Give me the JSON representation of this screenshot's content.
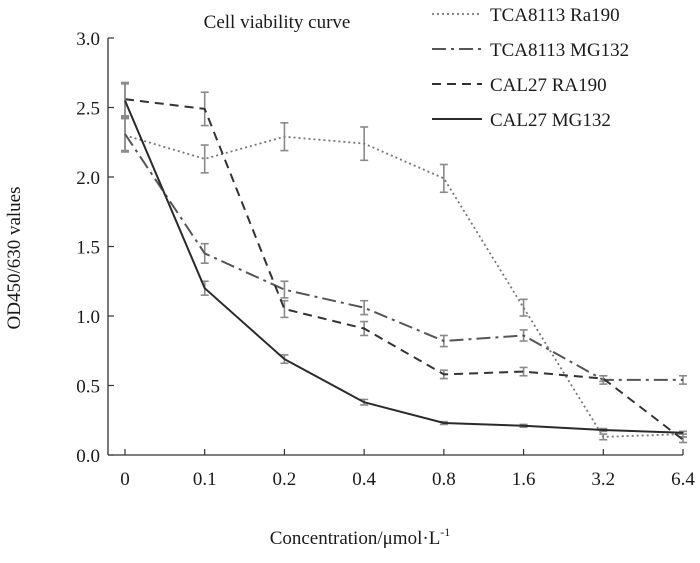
{
  "chart_data": {
    "type": "line",
    "title": "Cell viability curve",
    "xlabel": "Concentration/μmol·L",
    "xlabel_superscript": "-1",
    "ylabel": "OD450/630 values",
    "categories": [
      "0",
      "0.1",
      "0.2",
      "0.4",
      "0.8",
      "1.6",
      "3.2",
      "6.4"
    ],
    "yticks": [
      "0.0",
      "0.5",
      "1.0",
      "1.5",
      "2.0",
      "2.5",
      "3.0"
    ],
    "ylim": [
      0,
      3
    ],
    "legend_position": "top-right",
    "series": [
      {
        "name": "TCA8113 Ra190",
        "style": "dotted",
        "color": "#777777",
        "values": [
          2.3,
          2.13,
          2.29,
          2.24,
          1.99,
          1.06,
          0.13,
          0.15
        ],
        "errors": [
          0.12,
          0.1,
          0.1,
          0.12,
          0.1,
          0.06,
          0.02,
          0.02
        ]
      },
      {
        "name": "TCA8113 MG132",
        "style": "dashdot",
        "color": "#555555",
        "values": [
          2.31,
          1.45,
          1.19,
          1.06,
          0.82,
          0.86,
          0.54,
          0.54
        ],
        "errors": [
          0.12,
          0.07,
          0.06,
          0.05,
          0.04,
          0.04,
          0.03,
          0.03
        ]
      },
      {
        "name": "CAL27 RA190",
        "style": "dashed",
        "color": "#333333",
        "values": [
          2.56,
          2.49,
          1.05,
          0.91,
          0.58,
          0.6,
          0.55,
          0.11
        ],
        "errors": [
          0.12,
          0.12,
          0.06,
          0.05,
          0.03,
          0.03,
          0.02,
          0.02
        ]
      },
      {
        "name": "CAL27 MG132",
        "style": "solid",
        "color": "#2a2a2a",
        "values": [
          2.55,
          1.2,
          0.69,
          0.38,
          0.23,
          0.21,
          0.18,
          0.16
        ],
        "errors": [
          0.12,
          0.05,
          0.03,
          0.02,
          0.01,
          0.01,
          0.01,
          0.01
        ]
      }
    ]
  }
}
